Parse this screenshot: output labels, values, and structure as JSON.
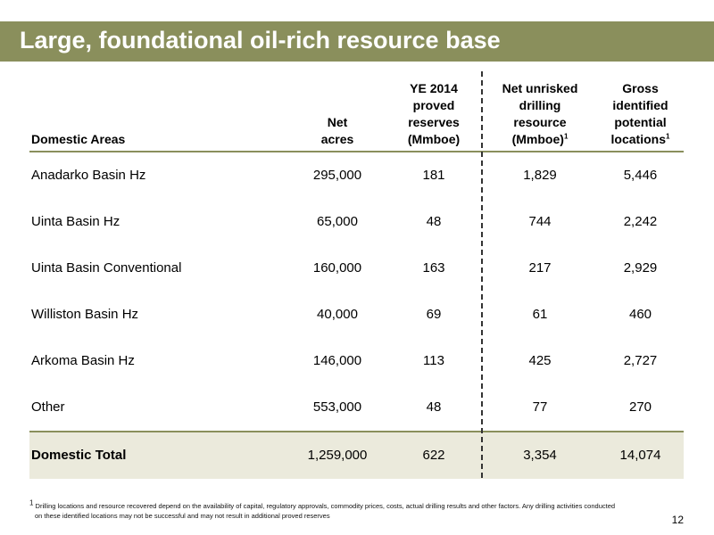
{
  "title": "Large, foundational oil-rich resource base",
  "headers": {
    "area": "Domestic Areas",
    "acres": "Net\nacres",
    "reserves": "YE 2014\nproved\nreserves\n(Mmboe)",
    "resource": "Net unrisked\ndrilling\nresource\n(Mmboe)",
    "resource_sup": "1",
    "locations": "Gross\nidentified\npotential\nlocations",
    "locations_sup": "1"
  },
  "rows": [
    {
      "area": "Anadarko Basin Hz",
      "acres": "295,000",
      "reserves": "181",
      "resource": "1,829",
      "locations": "5,446"
    },
    {
      "area": "Uinta Basin Hz",
      "acres": "65,000",
      "reserves": "48",
      "resource": "744",
      "locations": "2,242"
    },
    {
      "area": "Uinta Basin Conventional",
      "acres": "160,000",
      "reserves": "163",
      "resource": "217",
      "locations": "2,929"
    },
    {
      "area": "Williston Basin Hz",
      "acres": "40,000",
      "reserves": "69",
      "resource": "61",
      "locations": "460"
    },
    {
      "area": "Arkoma Basin Hz",
      "acres": "146,000",
      "reserves": "113",
      "resource": "425",
      "locations": "2,727"
    },
    {
      "area": "Other",
      "acres": "553,000",
      "reserves": "48",
      "resource": "77",
      "locations": "270"
    }
  ],
  "total": {
    "area": "Domestic Total",
    "acres": "1,259,000",
    "reserves": "622",
    "resource": "3,354",
    "locations": "14,074"
  },
  "footnote": {
    "marker": "1",
    "line1": "Drilling locations and resource recovered depend on the availability of capital, regulatory approvals, commodity prices, costs, actual drilling results and other factors. Any drilling activities conducted",
    "line2": "on these identified locations may not be successful and may not result in additional proved reserves"
  },
  "page_number": "12",
  "colors": {
    "accent": "#8a8f5c",
    "total_bg": "#ebeadc"
  }
}
